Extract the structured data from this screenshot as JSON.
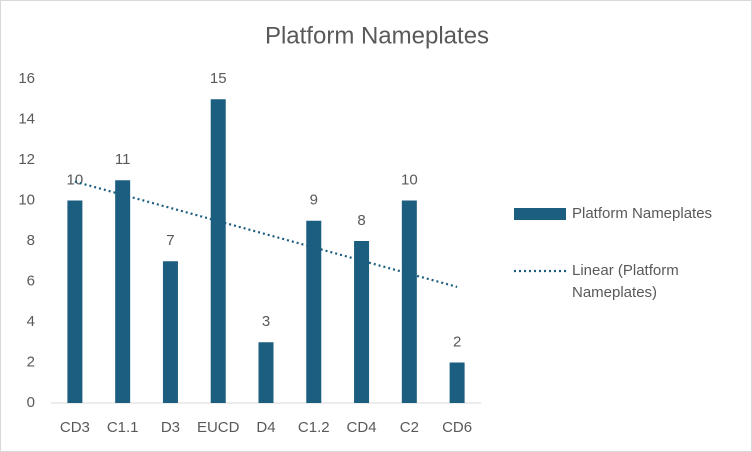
{
  "chart_data": {
    "type": "bar",
    "title": "Platform Nameplates",
    "categories": [
      "CD3",
      "C1.1",
      "D3",
      "EUCD",
      "D4",
      "C1.2",
      "CD4",
      "C2",
      "CD6"
    ],
    "series": [
      {
        "name": "Platform Nameplates",
        "color": "#1b5e80",
        "values": [
          10,
          11,
          7,
          15,
          3,
          9,
          8,
          10,
          2
        ]
      }
    ],
    "trendline": {
      "kind": "linear",
      "name": "Linear (Platform Nameplates)",
      "color": "#1b5e80"
    },
    "ylim": [
      0,
      16
    ],
    "yticks": [
      0,
      2,
      4,
      6,
      8,
      10,
      12,
      14,
      16
    ],
    "grid": false,
    "legend": "right",
    "data_labels": true
  }
}
